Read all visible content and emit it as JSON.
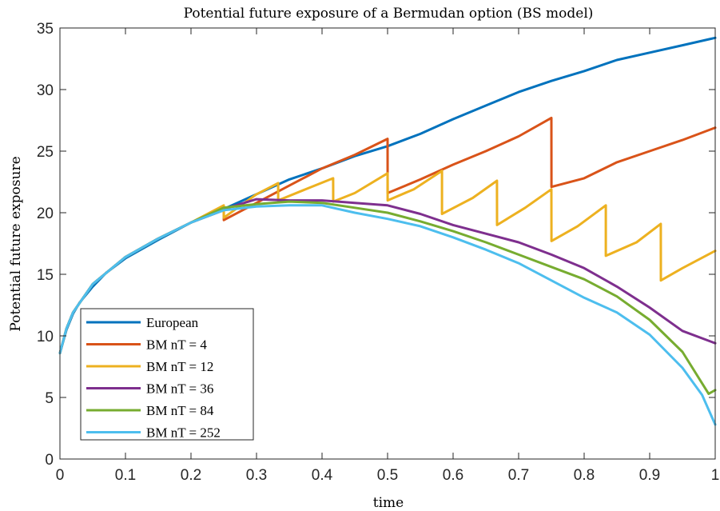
{
  "chart_data": {
    "type": "line",
    "title": "Potential future exposure of a Bermudan option (BS model)",
    "xlabel": "time",
    "ylabel": "Potential future exposure",
    "xlim": [
      0,
      1
    ],
    "ylim": [
      0,
      35
    ],
    "xticks": [
      "0",
      "0.1",
      "0.2",
      "0.3",
      "0.4",
      "0.5",
      "0.6",
      "0.7",
      "0.8",
      "0.9",
      "1"
    ],
    "yticks": [
      "0",
      "5",
      "10",
      "15",
      "20",
      "25",
      "30",
      "35"
    ],
    "grid": false,
    "legend_position": "bottom-left",
    "series": [
      {
        "name": "European",
        "color": "#0072BD",
        "x": [
          0,
          0.01,
          0.02,
          0.03,
          0.05,
          0.07,
          0.1,
          0.15,
          0.2,
          0.25,
          0.3,
          0.35,
          0.4,
          0.45,
          0.5,
          0.55,
          0.6,
          0.65,
          0.7,
          0.75,
          0.8,
          0.85,
          0.9,
          0.95,
          1.0
        ],
        "y": [
          8.6,
          10.5,
          11.8,
          12.7,
          14.0,
          15.1,
          16.3,
          17.8,
          19.2,
          20.3,
          21.5,
          22.7,
          23.6,
          24.6,
          25.4,
          26.4,
          27.6,
          28.7,
          29.8,
          30.7,
          31.5,
          32.4,
          33.0,
          33.6,
          34.2
        ]
      },
      {
        "name": "BM nT = 4",
        "color": "#D95319",
        "x": [
          0,
          0.01,
          0.02,
          0.05,
          0.1,
          0.15,
          0.2,
          0.25,
          0.2501,
          0.3,
          0.35,
          0.4,
          0.45,
          0.5,
          0.5001,
          0.55,
          0.6,
          0.65,
          0.7,
          0.75,
          0.7501,
          0.8,
          0.85,
          0.9,
          0.95,
          1.0
        ],
        "y": [
          8.6,
          10.6,
          11.9,
          14.2,
          16.4,
          17.9,
          19.2,
          20.2,
          19.4,
          20.8,
          22.2,
          23.6,
          24.7,
          26.0,
          21.6,
          22.7,
          23.9,
          25.0,
          26.2,
          27.7,
          22.1,
          22.8,
          24.1,
          25.0,
          25.9,
          26.9
        ]
      },
      {
        "name": "BM nT = 12",
        "color": "#EDB120",
        "x": [
          0,
          0.01,
          0.02,
          0.05,
          0.1,
          0.15,
          0.2,
          0.25,
          0.2501,
          0.3,
          0.333,
          0.3331,
          0.37,
          0.417,
          0.4171,
          0.45,
          0.5,
          0.5001,
          0.54,
          0.583,
          0.5831,
          0.63,
          0.667,
          0.6671,
          0.71,
          0.75,
          0.7501,
          0.79,
          0.833,
          0.8331,
          0.88,
          0.917,
          0.9171,
          0.95,
          1.0
        ],
        "y": [
          8.6,
          10.6,
          11.9,
          14.2,
          16.4,
          17.9,
          19.2,
          20.6,
          19.6,
          21.5,
          22.4,
          21.0,
          21.8,
          22.8,
          20.9,
          21.6,
          23.2,
          21.0,
          21.9,
          23.4,
          19.9,
          21.2,
          22.6,
          19.0,
          20.4,
          21.9,
          17.7,
          18.9,
          20.6,
          16.5,
          17.6,
          19.1,
          14.5,
          15.5,
          16.9
        ]
      },
      {
        "name": "BM nT = 36",
        "color": "#7E2F8E",
        "x": [
          0,
          0.01,
          0.02,
          0.05,
          0.1,
          0.15,
          0.2,
          0.25,
          0.3,
          0.35,
          0.4,
          0.45,
          0.5,
          0.55,
          0.6,
          0.65,
          0.7,
          0.75,
          0.8,
          0.85,
          0.9,
          0.95,
          1.0
        ],
        "y": [
          8.6,
          10.6,
          11.9,
          14.2,
          16.4,
          17.9,
          19.2,
          20.3,
          21.1,
          21.0,
          21.0,
          20.8,
          20.6,
          19.9,
          19.0,
          18.3,
          17.6,
          16.6,
          15.5,
          14.0,
          12.3,
          10.4,
          9.4
        ]
      },
      {
        "name": "BM nT = 84",
        "color": "#77AC30",
        "x": [
          0,
          0.01,
          0.02,
          0.05,
          0.1,
          0.15,
          0.2,
          0.25,
          0.3,
          0.35,
          0.4,
          0.45,
          0.5,
          0.55,
          0.6,
          0.65,
          0.7,
          0.75,
          0.8,
          0.85,
          0.9,
          0.95,
          0.99,
          1.0
        ],
        "y": [
          8.6,
          10.6,
          11.9,
          14.2,
          16.4,
          17.9,
          19.2,
          20.4,
          20.7,
          20.9,
          20.8,
          20.4,
          20.0,
          19.3,
          18.5,
          17.6,
          16.6,
          15.6,
          14.6,
          13.2,
          11.3,
          8.7,
          5.3,
          5.6
        ]
      },
      {
        "name": "BM nT = 252",
        "color": "#4DBEEE",
        "x": [
          0,
          0.01,
          0.02,
          0.05,
          0.1,
          0.15,
          0.2,
          0.25,
          0.3,
          0.35,
          0.4,
          0.45,
          0.5,
          0.55,
          0.6,
          0.65,
          0.7,
          0.75,
          0.8,
          0.85,
          0.9,
          0.95,
          0.98,
          1.0
        ],
        "y": [
          8.6,
          10.6,
          11.9,
          14.2,
          16.4,
          17.9,
          19.2,
          20.2,
          20.5,
          20.6,
          20.6,
          20.0,
          19.5,
          18.9,
          18.0,
          17.0,
          15.9,
          14.5,
          13.1,
          11.9,
          10.1,
          7.4,
          5.2,
          2.8
        ]
      }
    ]
  }
}
